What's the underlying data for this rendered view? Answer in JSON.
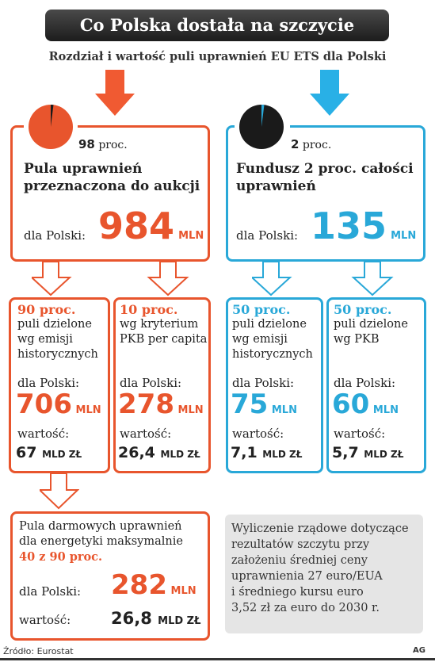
{
  "title": "Co Polska dostała na szczycie",
  "subtitle": "Rozdział i wartość puli uprawnień EU ETS dla Polski",
  "colors": {
    "red": "#e8552d",
    "blue": "#29a8d8",
    "dark": "#222222",
    "grey": "#e5e5e5"
  },
  "left_main": {
    "pie_share_percent": 98,
    "percent_label": "98",
    "percent_unit": "proc.",
    "heading_line1": "Pula uprawnień",
    "heading_line2": "przeznaczona do aukcji",
    "for_poland": "dla Polski:",
    "amount": "984",
    "amount_unit": "MLN"
  },
  "right_main": {
    "pie_share_percent": 2,
    "percent_label": "2",
    "percent_unit": "proc.",
    "heading_line1": "Fundusz 2 proc. całości",
    "heading_line2": "uprawnień",
    "for_poland": "dla Polski:",
    "amount": "135",
    "amount_unit": "MLN"
  },
  "sub_boxes": [
    {
      "pct": "90 proc.",
      "line1": "puli dzielone",
      "line2": "wg emisji",
      "line3": "historycznych",
      "for_poland": "dla Polski:",
      "amount": "706",
      "amount_unit": "MLN",
      "value_label": "wartość:",
      "value": "67",
      "value_unit": "MLD ZŁ"
    },
    {
      "pct": "10 proc.",
      "line1": "wg kryterium",
      "line2": "PKB per capita",
      "line3": "",
      "for_poland": "dla Polski:",
      "amount": "278",
      "amount_unit": "MLN",
      "value_label": "wartość:",
      "value": "26,4",
      "value_unit": "MLD ZŁ"
    },
    {
      "pct": "50 proc.",
      "line1": "puli dzielone",
      "line2": "wg emisji",
      "line3": "historycznych",
      "for_poland": "dla Polski:",
      "amount": "75",
      "amount_unit": "MLN",
      "value_label": "wartość:",
      "value": "7,1",
      "value_unit": "MLD ZŁ"
    },
    {
      "pct": "50 proc.",
      "line1": "puli dzielone",
      "line2": "wg PKB",
      "line3": "",
      "for_poland": "dla Polski:",
      "amount": "60",
      "amount_unit": "MLN",
      "value_label": "wartość:",
      "value": "5,7",
      "value_unit": "MLD ZŁ"
    }
  ],
  "energy_box": {
    "line1": "Pula darmowych uprawnień",
    "line2": "dla energetyki maksymalnie",
    "line3": "40 z 90 proc.",
    "for_poland": "dla Polski:",
    "amount": "282",
    "amount_unit": "MLN",
    "value_label": "wartość:",
    "value": "26,8",
    "value_unit": "MLD ZŁ"
  },
  "note": {
    "line1": "Wyliczenie rządowe dotyczące",
    "line2": "rezultatów szczytu przy",
    "line3": "założeniu średniej ceny",
    "line4": "uprawnienia 27 euro/EUA",
    "line5": "i średniego kursu euro",
    "line6": "3,52 zł za euro do 2030 r."
  },
  "source": "Źródło: Eurostat",
  "credit": "AG"
}
